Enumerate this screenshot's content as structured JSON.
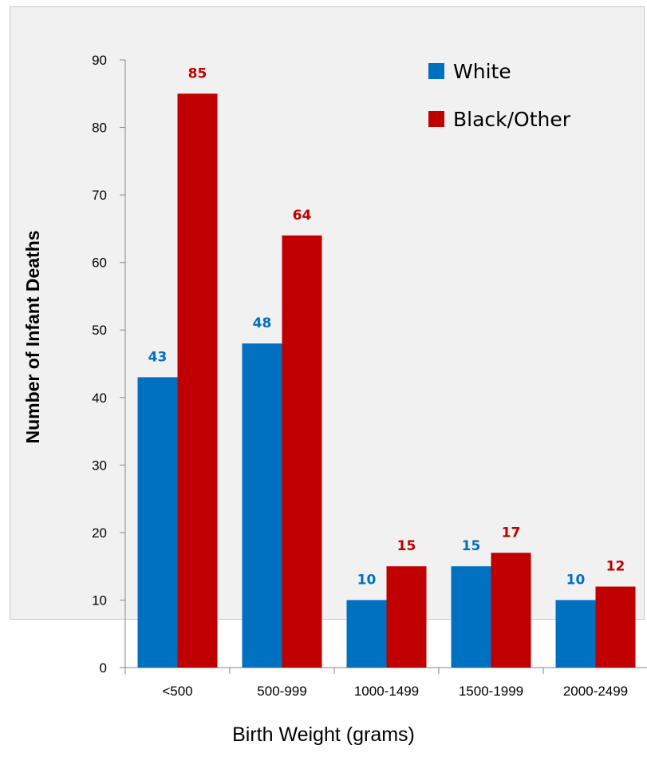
{
  "chart_data": {
    "type": "bar",
    "xlabel": "Birth Weight (grams)",
    "ylabel": "Number of Infant Deaths",
    "categories": [
      "<500",
      "500-999",
      "1000-1499",
      "1500-1999",
      "2000-2499"
    ],
    "series": [
      {
        "name": "White",
        "values": [
          43,
          48,
          10,
          15,
          10
        ],
        "color": "#0070c0"
      },
      {
        "name": "Black/Other",
        "values": [
          85,
          64,
          15,
          17,
          12
        ],
        "color": "#c00000"
      }
    ],
    "ylim": [
      0,
      90
    ],
    "yticks": [
      0,
      10,
      20,
      30,
      40,
      50,
      60,
      70,
      80,
      90
    ],
    "legend_position": "top-right",
    "grid": false
  }
}
